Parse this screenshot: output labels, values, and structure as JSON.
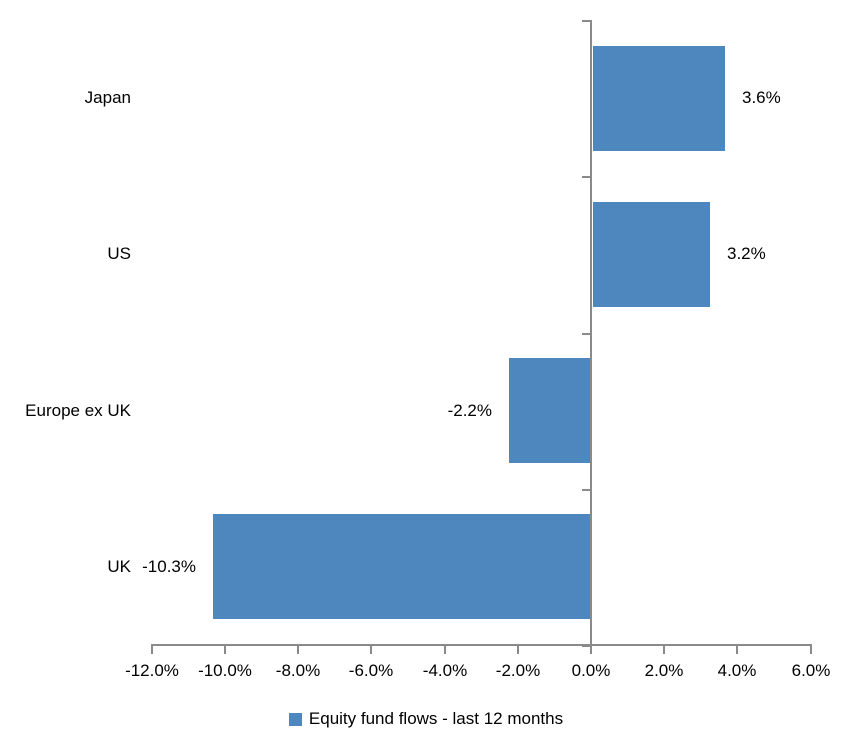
{
  "chart_data": {
    "type": "bar",
    "orientation": "horizontal",
    "title": "",
    "categories": [
      "Japan",
      "US",
      "Europe ex UK",
      "UK"
    ],
    "values": [
      3.6,
      3.2,
      -2.2,
      -10.3
    ],
    "data_labels": [
      "3.6%",
      "3.2%",
      "-2.2%",
      "-10.3%"
    ],
    "x_ticks": [
      -12,
      -10,
      -8,
      -6,
      -4,
      -2,
      0,
      2,
      4,
      6
    ],
    "x_tick_labels": [
      "-12.0%",
      "-10.0%",
      "-8.0%",
      "-6.0%",
      "-4.0%",
      "-2.0%",
      "0.0%",
      "2.0%",
      "4.0%",
      "6.0%"
    ],
    "xlim": [
      -12,
      6
    ],
    "grid": false,
    "legend_position": "bottom",
    "legend": {
      "label": "Equity fund flows - last 12 months"
    },
    "colors": {
      "series": "#4E86BE",
      "axis": "#8A8A8A",
      "text": "#000000",
      "background": "#FFFFFF"
    }
  }
}
